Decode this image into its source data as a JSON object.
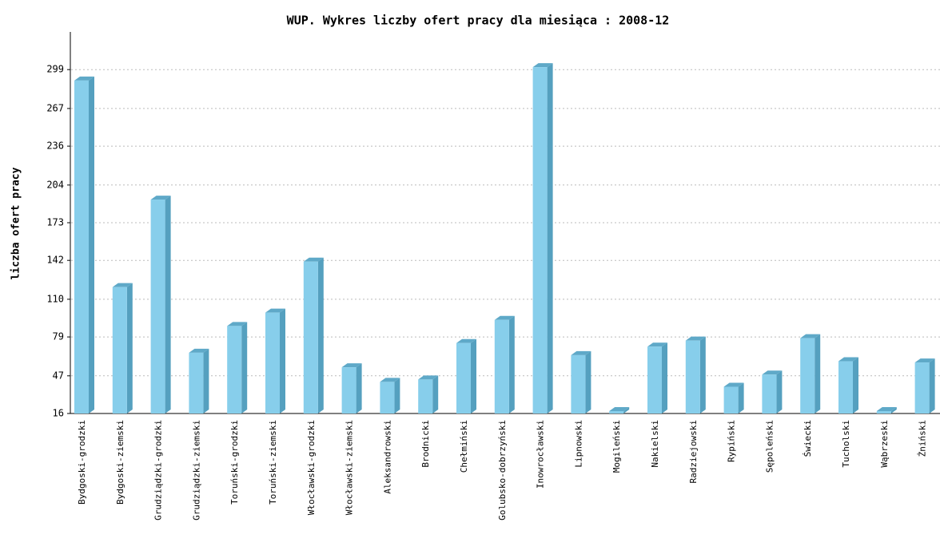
{
  "chart_data": {
    "type": "bar",
    "title": "WUP. Wykres liczby ofert pracy dla miesiąca : 2008-12",
    "y_label": "liczba ofert pracy",
    "categories": [
      "Bydgoski-grodzki",
      "Bydgoski-ziemski",
      "Grudziądzki-grodzki",
      "Grudziądzki-ziemski",
      "Toruński-grodzki",
      "Toruński-ziemski",
      "Włocławski-grodzki",
      "Włocławski-ziemski",
      "Aleksandrowski",
      "Brodnicki",
      "Chełmiński",
      "Golubsko-dobrzyński",
      "Inowrocławski",
      "Lipnowski",
      "Mogileński",
      "Nakielski",
      "Radziejowski",
      "Rypiński",
      "Sępoleński",
      "Świecki",
      "Tucholski",
      "Wąbrzeski",
      "Żniński"
    ],
    "values": [
      290,
      120,
      192,
      66,
      88,
      99,
      141,
      54,
      42,
      44,
      74,
      93,
      301,
      64,
      18,
      71,
      76,
      38,
      48,
      78,
      59,
      18,
      58
    ],
    "color": "#87ceeb",
    "ylim": [
      16,
      330
    ],
    "yticks": [
      16,
      47,
      79,
      110,
      142,
      173,
      204,
      236,
      267,
      299
    ],
    "grid": true
  }
}
